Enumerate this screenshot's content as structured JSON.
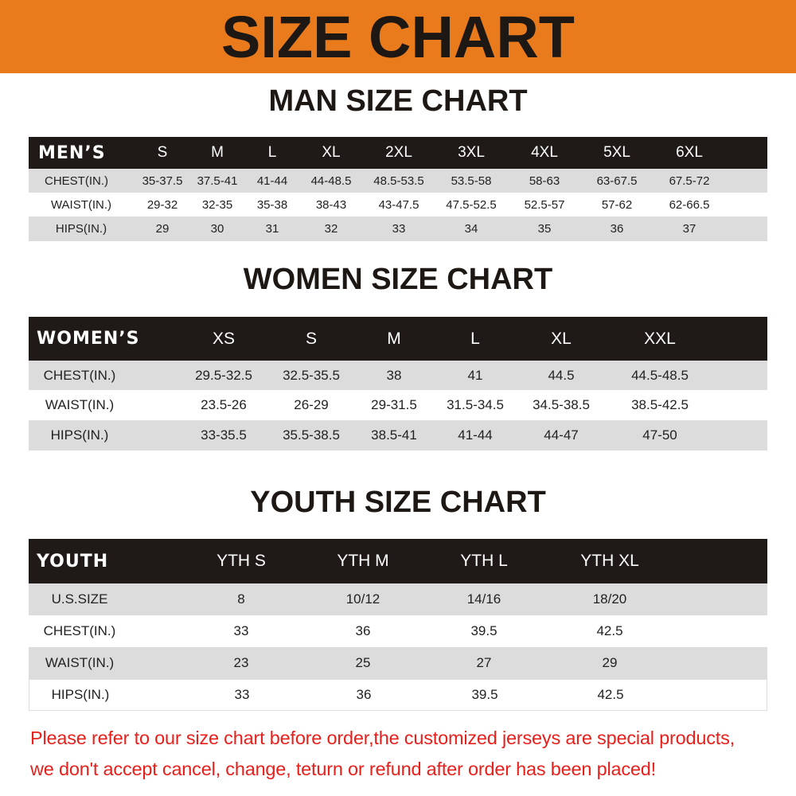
{
  "banner": {
    "title": "SIZE CHART",
    "color": "#ea7b1d"
  },
  "men": {
    "title": "MAN SIZE CHART",
    "header": [
      "MEN’S",
      "S",
      "M",
      "L",
      "XL",
      "2XL",
      "3XL",
      "4XL",
      "5XL",
      "6XL"
    ],
    "rows": [
      [
        "CHEST(IN.)",
        "35-37.5",
        "37.5-41",
        "41-44",
        "44-48.5",
        "48.5-53.5",
        "53.5-58",
        "58-63",
        "63-67.5",
        "67.5-72"
      ],
      [
        "WAIST(IN.)",
        "29-32",
        "32-35",
        "35-38",
        "38-43",
        "43-47.5",
        "47.5-52.5",
        "52.5-57",
        "57-62",
        "62-66.5"
      ],
      [
        "HIPS(IN.)",
        "29",
        "30",
        "31",
        "32",
        "33",
        "34",
        "35",
        "36",
        "37"
      ]
    ]
  },
  "women": {
    "title": "WOMEN SIZE CHART",
    "header": [
      "WOMEN’S",
      "XS",
      "S",
      "M",
      "L",
      "XL",
      "XXL"
    ],
    "rows": [
      [
        "CHEST(IN.)",
        "29.5-32.5",
        "32.5-35.5",
        "38",
        "41",
        "44.5",
        "44.5-48.5"
      ],
      [
        "WAIST(IN.)",
        "23.5-26",
        "26-29",
        "29-31.5",
        "31.5-34.5",
        "34.5-38.5",
        "38.5-42.5"
      ],
      [
        "HIPS(IN.)",
        "33-35.5",
        "35.5-38.5",
        "38.5-41",
        "41-44",
        "44-47",
        "47-50"
      ]
    ]
  },
  "youth": {
    "title": "YOUTH SIZE CHART",
    "header": [
      "YOUTH",
      "YTH S",
      "YTH M",
      "YTH L",
      "YTH XL"
    ],
    "rows": [
      [
        "U.S.SIZE",
        "8",
        "10/12",
        "14/16",
        "18/20"
      ],
      [
        "CHEST(IN.)",
        "33",
        "36",
        "39.5",
        "42.5"
      ],
      [
        "WAIST(IN.)",
        "23",
        "25",
        "27",
        "29"
      ],
      [
        "HIPS(IN.)",
        "33",
        "36",
        "39.5",
        "42.5"
      ]
    ]
  },
  "notice": {
    "line1": "Please refer to our size chart before order,the customized jerseys are special products,",
    "line2": "we don't accept cancel, change, teturn or refund after order has been placed!",
    "color": "#e8201c"
  }
}
